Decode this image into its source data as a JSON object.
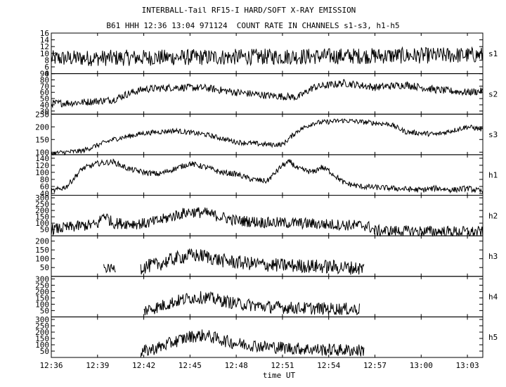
{
  "header": {
    "title": "INTERBALL-Tail RF15-I HARD/SOFT X-RAY EMISSION",
    "subtitle": "B61 HHH 12:36 13:04 971124  COUNT RATE IN CHANNELS s1-s3, h1-h5"
  },
  "chart_data": {
    "type": "line",
    "title": "INTERBALL-Tail RF15-I HARD/SOFT X-RAY EMISSION",
    "subtitle": "B61 HHH 12:36 13:04 971124  COUNT RATE IN CHANNELS s1-s3, h1-h5",
    "xlabel": "time UT",
    "x_range_min": [
      0,
      28
    ],
    "x_ticks": [
      "12:36",
      "12:39",
      "12:42",
      "12:45",
      "12:48",
      "12:51",
      "12:54",
      "12:57",
      "13:00",
      "13:03"
    ],
    "x_tick_min": [
      0,
      3,
      6,
      9,
      12,
      15,
      18,
      21,
      24,
      27
    ],
    "panels": [
      {
        "channel": "s1",
        "ylim": [
          4,
          16
        ],
        "yticks": [
          "16",
          "14",
          "12",
          "10",
          "8",
          "6",
          "4"
        ],
        "ytick_values": [
          16,
          14,
          12,
          10,
          8,
          6,
          4
        ],
        "trend": {
          "t": [
            0,
            28
          ],
          "v": [
            8.5,
            9.5
          ]
        },
        "noise": 2.4,
        "start": 0,
        "end": 28
      },
      {
        "channel": "s2",
        "ylim": [
          25,
          90
        ],
        "yticks": [
          "90",
          "80",
          "70",
          "60",
          "50",
          "40",
          "30"
        ],
        "ytick_values": [
          90,
          80,
          70,
          60,
          50,
          40,
          30
        ],
        "trend": {
          "t": [
            0,
            2,
            4,
            5,
            6,
            8,
            10,
            12,
            14,
            16,
            17,
            19,
            21,
            23,
            25,
            27,
            28
          ],
          "v": [
            42,
            44,
            48,
            58,
            65,
            68,
            67,
            60,
            55,
            52,
            68,
            75,
            68,
            72,
            64,
            60,
            62
          ]
        },
        "noise": 6,
        "start": 0,
        "end": 28
      },
      {
        "channel": "s3",
        "ylim": [
          90,
          250
        ],
        "yticks": [
          "250",
          "200",
          "150",
          "100"
        ],
        "ytick_values": [
          250,
          200,
          150,
          100
        ],
        "trend": {
          "t": [
            0,
            2,
            4,
            6,
            8,
            10,
            12,
            14,
            15,
            16,
            17,
            19,
            20,
            22,
            23,
            24,
            25,
            26,
            27,
            28
          ],
          "v": [
            95,
            105,
            150,
            175,
            185,
            170,
            140,
            130,
            130,
            185,
            215,
            225,
            220,
            210,
            180,
            175,
            170,
            185,
            200,
            190
          ]
        },
        "noise": 10,
        "start": 0,
        "end": 28
      },
      {
        "channel": "h1",
        "ylim": [
          35,
          150
        ],
        "yticks": [
          "140",
          "120",
          "100",
          "80",
          "60",
          "40"
        ],
        "ytick_values": [
          140,
          120,
          100,
          80,
          60,
          40
        ],
        "trend": {
          "t": [
            0,
            1,
            2,
            3,
            4,
            5,
            6,
            7,
            8,
            9,
            10,
            11,
            12,
            13,
            14,
            15,
            15.5,
            16,
            17,
            17.5,
            18,
            19,
            20,
            22,
            24,
            25,
            26,
            27,
            28
          ],
          "v": [
            45,
            60,
            110,
            125,
            130,
            110,
            100,
            95,
            110,
            125,
            115,
            100,
            95,
            80,
            75,
            120,
            130,
            110,
            100,
            115,
            105,
            70,
            60,
            55,
            50,
            55,
            50,
            55,
            45
          ]
        },
        "noise": 8,
        "start": 0,
        "end": 28
      },
      {
        "channel": "h2",
        "ylim": [
          0,
          320
        ],
        "yticks": [
          "300",
          "250",
          "200",
          "150",
          "100",
          "50"
        ],
        "ytick_values": [
          300,
          250,
          200,
          150,
          100,
          50
        ],
        "trend": {
          "t": [
            0,
            2,
            3,
            3.4,
            4,
            6,
            7,
            8,
            9,
            10,
            11,
            12,
            14,
            16,
            19,
            20.5,
            21,
            28
          ],
          "v": [
            50,
            80,
            90,
            170,
            100,
            95,
            120,
            160,
            190,
            180,
            150,
            120,
            105,
            100,
            85,
            80,
            40,
            30
          ]
        },
        "noise": 45,
        "start": 0,
        "end": 28
      },
      {
        "channel": "h3",
        "ylim": [
          0,
          230
        ],
        "yticks": [
          "200",
          "150",
          "100",
          "50"
        ],
        "ytick_values": [
          200,
          150,
          100,
          50
        ],
        "segments": [
          {
            "start": 3.4,
            "end": 4.2,
            "trend": {
              "t": [
                3.4,
                4.2
              ],
              "v": [
                45,
                45
              ]
            },
            "noise": 25
          },
          {
            "start": 5.8,
            "end": 20.3,
            "trend": {
              "t": [
                5.8,
                7,
                8,
                9,
                10,
                11,
                12,
                14,
                16,
                18,
                20.3
              ],
              "v": [
                50,
                70,
                100,
                120,
                115,
                90,
                80,
                65,
                60,
                55,
                45
              ]
            },
            "noise": 40
          }
        ]
      },
      {
        "channel": "h4",
        "ylim": [
          0,
          320
        ],
        "yticks": [
          "300",
          "250",
          "200",
          "150",
          "100",
          "50"
        ],
        "ytick_values": [
          300,
          250,
          200,
          150,
          100,
          50
        ],
        "segments": [
          {
            "start": 6.0,
            "end": 20.0,
            "trend": {
              "t": [
                6.0,
                7,
                8,
                9,
                10,
                11,
                12,
                14,
                16,
                18,
                20
              ],
              "v": [
                50,
                80,
                120,
                150,
                155,
                130,
                105,
                80,
                70,
                65,
                60
              ]
            },
            "noise": 50
          }
        ]
      },
      {
        "channel": "h5",
        "ylim": [
          0,
          320
        ],
        "yticks": [
          "300",
          "250",
          "200",
          "150",
          "100",
          "50"
        ],
        "ytick_values": [
          300,
          250,
          200,
          150,
          100,
          50
        ],
        "segments": [
          {
            "start": 5.8,
            "end": 20.3,
            "trend": {
              "t": [
                5.8,
                7,
                8,
                9,
                10,
                11,
                12,
                14,
                16,
                18,
                20.3
              ],
              "v": [
                40,
                80,
                125,
                165,
                175,
                140,
                110,
                85,
                70,
                60,
                55
              ]
            },
            "noise": 50
          }
        ]
      }
    ],
    "grid": false,
    "legend": "none",
    "colors": {
      "line": "#000000",
      "background": "#ffffff"
    }
  }
}
